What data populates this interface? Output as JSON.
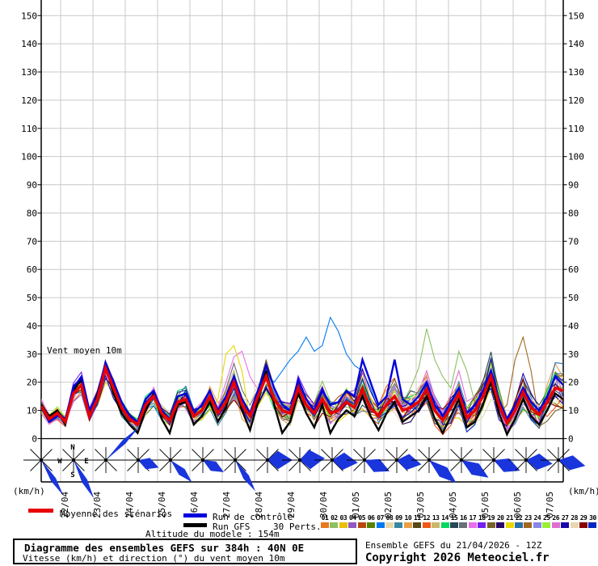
{
  "legend": {
    "mean": "Moyenne des scénarios",
    "control": "Run de contrôle",
    "gfs": "Run GFS",
    "perts": "30 Perts.",
    "altitude": "Altitude du modele : 154m"
  },
  "footer": {
    "title": "Diagramme des ensembles GEFS sur 384h : 40N 0E",
    "subtitle": "Vitesse (km/h) et direction (°) du vent moyen 10m",
    "run_info": "Ensemble GEFS du 21/04/2026 - 12Z",
    "copyright": "Copyright 2026 Meteociel.fr"
  },
  "chart_data": {
    "type": "line",
    "title": "Vent moyen 10m",
    "unit": "(km/h)",
    "xlabel": "",
    "ylabel": "(km/h)",
    "ylim": [
      0,
      150
    ],
    "ytick_step": 10,
    "grid": true,
    "legend_position": "bottom",
    "hours_span": 384,
    "time_step_hours": 6,
    "x_dates": [
      "22/04",
      "23/04",
      "24/04",
      "25/04",
      "26/04",
      "27/04",
      "28/04",
      "29/04",
      "30/04",
      "01/05",
      "02/05",
      "03/05",
      "04/05",
      "05/05",
      "06/05",
      "07/05"
    ],
    "colors": {
      "mean": "#E80000",
      "control": "#0000DD",
      "gfs": "#000000",
      "rose_arrow": "#1A35DC",
      "grid": "#C9C9C9"
    },
    "series": {
      "mean": {
        "name": "Moyenne des scénarios",
        "values": [
          11.5,
          7,
          9,
          6,
          16,
          19,
          8,
          14,
          25,
          18,
          11,
          7,
          5,
          12,
          15,
          9,
          6.5,
          13,
          14,
          8,
          10,
          15,
          9,
          13,
          20,
          12,
          8,
          15,
          22,
          14,
          10,
          9,
          18,
          12,
          9,
          14,
          9,
          10,
          13,
          11,
          17.5,
          11,
          8,
          12,
          15,
          10,
          11,
          13,
          17.5,
          10,
          6.5,
          11,
          16,
          7.5,
          10,
          15,
          22,
          12,
          5.5,
          10,
          16.5,
          11,
          8.5,
          13,
          18,
          17
        ]
      },
      "control": {
        "name": "Run de contrôle",
        "values": [
          11,
          6,
          8,
          7,
          18,
          22,
          10,
          15,
          27,
          20,
          13,
          8,
          6,
          14,
          17,
          10,
          7,
          15,
          16,
          9,
          12,
          17,
          10,
          15,
          22,
          14,
          9,
          17,
          26,
          18,
          12,
          10,
          21,
          14,
          10,
          17,
          12,
          13,
          17,
          15,
          28,
          20,
          12,
          15,
          28,
          14,
          12,
          15,
          20,
          12,
          8,
          13,
          18,
          9,
          12,
          17,
          24,
          14,
          7,
          12,
          18,
          13,
          10,
          15,
          22,
          19
        ]
      },
      "gfs": {
        "name": "Run GFS",
        "values": [
          12,
          8,
          10,
          5,
          17,
          21,
          9,
          16,
          26,
          16,
          9,
          5,
          2,
          10,
          16,
          7,
          2,
          12,
          13,
          5,
          8,
          13,
          6,
          11,
          21,
          10,
          3,
          13,
          24,
          12,
          2,
          6,
          16,
          9,
          4,
          12,
          2,
          7,
          10,
          8,
          15,
          8,
          3,
          9,
          13,
          6,
          8,
          10,
          15,
          7,
          2,
          8,
          14,
          4,
          6,
          12,
          20,
          9,
          1.5,
          7,
          14,
          8,
          5,
          10,
          16,
          14
        ]
      }
    },
    "members": {
      "count": 30,
      "labels": [
        "01",
        "02",
        "03",
        "04",
        "05",
        "06",
        "07",
        "08",
        "09",
        "10",
        "11",
        "12",
        "13",
        "14",
        "15",
        "16",
        "17",
        "18",
        "19",
        "20",
        "21",
        "22",
        "23",
        "24",
        "25",
        "26",
        "27",
        "28",
        "29",
        "30"
      ],
      "colors": [
        "#E87820",
        "#8CC060",
        "#E8C000",
        "#9058C0",
        "#B84810",
        "#588000",
        "#0078F0",
        "#E8D8A8",
        "#3888A0",
        "#E8A048",
        "#584818",
        "#F05818",
        "#C8B868",
        "#00D860",
        "#284858",
        "#687078",
        "#E870E8",
        "#7820F0",
        "#786028",
        "#280868",
        "#E8D800",
        "#2870A8",
        "#A06820",
        "#8888E8",
        "#98F038",
        "#E070D0",
        "#1808A8",
        "#E8D8B0",
        "#880000",
        "#0028C0"
      ]
    },
    "synthesis": {
      "note": "individual ensemble member trajectories approximated as mean + bounded deterministic deviation",
      "amp_base": 3,
      "amp_growth": 6,
      "mean_factor_base": 0.45,
      "mean_factor_div": 18,
      "clamp": [
        0.4,
        55
      ]
    },
    "member_overrides": [
      {
        "member": 7,
        "start": 29,
        "values": [
          20,
          24,
          28,
          31,
          36,
          31,
          33,
          43,
          38,
          30,
          26,
          24,
          18
        ]
      },
      {
        "member": 2,
        "start": 46,
        "values": [
          18,
          25,
          39,
          28,
          22,
          18,
          31,
          24
        ]
      },
      {
        "member": 23,
        "start": 58,
        "values": [
          12,
          28,
          36,
          24
        ]
      },
      {
        "member": 21,
        "start": 22,
        "values": [
          14,
          30,
          33,
          24
        ]
      },
      {
        "member": 17,
        "start": 23,
        "values": [
          20,
          29,
          31,
          22
        ]
      }
    ],
    "wind_roses": {
      "compass": {
        "n": "N",
        "e": "E",
        "s": "S",
        "w": "W"
      },
      "roses": [
        {
          "a": 58,
          "r": 52,
          "h": 7
        },
        {
          "a": 62,
          "r": 54,
          "h": 7
        },
        {
          "a": -45,
          "r": 58,
          "h": 5
        },
        {
          "a": 20,
          "r": 27,
          "h": 30
        },
        {
          "a": 46,
          "r": 38,
          "h": 14
        },
        {
          "a": 30,
          "r": 30,
          "h": 24
        },
        {
          "a": 57,
          "r": 46,
          "h": 9
        },
        {
          "a": 0,
          "r": 31,
          "h": 42
        },
        {
          "a": -4,
          "r": 31,
          "h": 45
        },
        {
          "a": 6,
          "r": 32,
          "h": 38
        },
        {
          "a": 24,
          "r": 34,
          "h": 28
        },
        {
          "a": 10,
          "r": 31,
          "h": 36
        },
        {
          "a": 40,
          "r": 44,
          "h": 18
        },
        {
          "a": 33,
          "r": 40,
          "h": 22
        },
        {
          "a": 22,
          "r": 35,
          "h": 28
        },
        {
          "a": 8,
          "r": 33,
          "h": 34
        },
        {
          "a": 12,
          "r": 34,
          "h": 30
        }
      ]
    }
  }
}
